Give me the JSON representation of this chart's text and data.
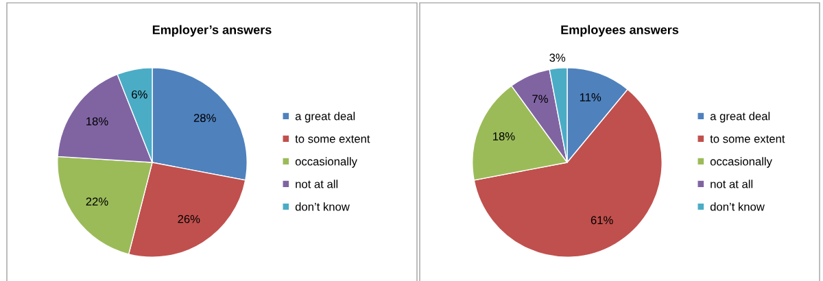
{
  "chart_data": [
    {
      "type": "pie",
      "title": "Employer’s answers",
      "categories": [
        "a great deal",
        "to some extent",
        "occasionally",
        "not at all",
        "don’t know"
      ],
      "values": [
        28,
        26,
        22,
        18,
        6
      ],
      "colors": [
        "#4f81bd",
        "#c0504d",
        "#9bbb59",
        "#8064a2",
        "#4bacc6"
      ],
      "value_labels": [
        "28%",
        "26%",
        "22%",
        "18%",
        "6%"
      ],
      "legend": "right"
    },
    {
      "type": "pie",
      "title": "Employees answers",
      "categories": [
        "a great deal",
        "to some extent",
        "occasionally",
        "not at all",
        "don’t know"
      ],
      "values": [
        11,
        61,
        18,
        7,
        3
      ],
      "colors": [
        "#4f81bd",
        "#c0504d",
        "#9bbb59",
        "#8064a2",
        "#4bacc6"
      ],
      "value_labels": [
        "11%",
        "61%",
        "18%",
        "7%",
        "3%"
      ],
      "legend": "right"
    }
  ]
}
